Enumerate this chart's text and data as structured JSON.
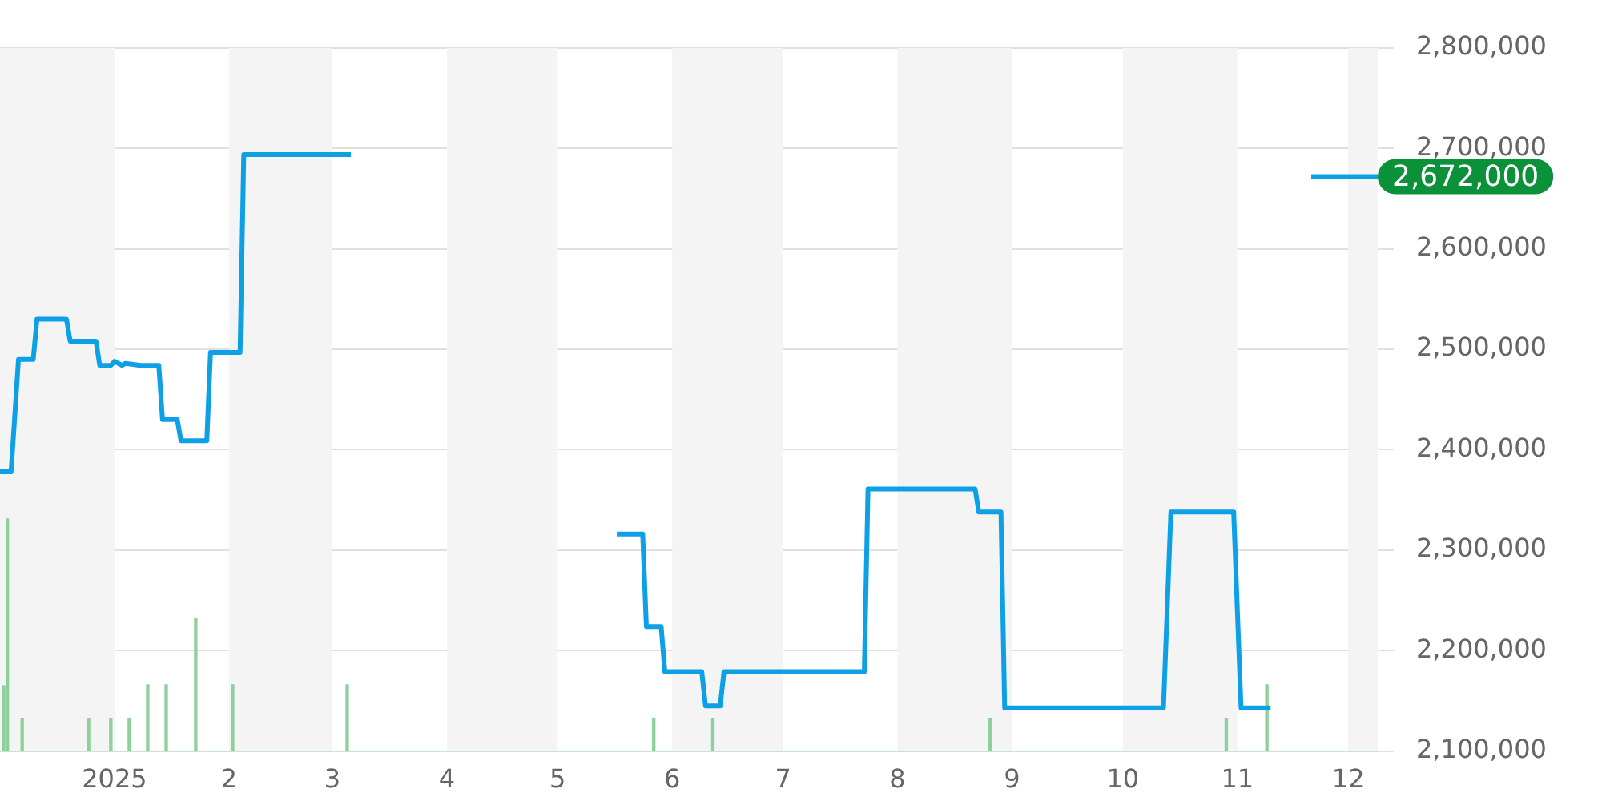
{
  "chart_data": {
    "type": "line",
    "series": [
      {
        "color": "#0ea0e6",
        "x": [
          "2024-12-01",
          "2024-12-04",
          "2024-12-06",
          "2024-12-10",
          "2024-12-11",
          "2024-12-19",
          "2024-12-20",
          "2024-12-27",
          "2024-12-28",
          "2024-12-31",
          "2025-01-01",
          "2025-01-03",
          "2025-01-04",
          "2025-01-08",
          "2025-01-13",
          "2025-01-14",
          "2025-01-18",
          "2025-01-19",
          "2025-01-26",
          "2025-01-27",
          "2025-02-04",
          "2025-02-05",
          "2025-03-06",
          "2025-04-01",
          "2025-05-17",
          "2025-05-24",
          "2025-05-25",
          "2025-05-29",
          "2025-05-30",
          "2025-06-09",
          "2025-06-10",
          "2025-06-14",
          "2025-06-15",
          "2025-07-23",
          "2025-07-24",
          "2025-08-22",
          "2025-08-23",
          "2025-08-29",
          "2025-08-30",
          "2025-10-12",
          "2025-10-14",
          "2025-10-31",
          "2025-11-02",
          "2025-11-10",
          "2025-11-15",
          "2025-11-21",
          "2025-12-09"
        ],
        "values": [
          2378000,
          2378000,
          2490000,
          2490000,
          2530000,
          2530000,
          2508000,
          2508000,
          2484000,
          2484000,
          2488000,
          2484000,
          2486000,
          2484000,
          2484000,
          2430000,
          2430000,
          2409000,
          2409000,
          2497000,
          2497000,
          2694000,
          2694000,
          null,
          2316000,
          2316000,
          2224000,
          2224000,
          2179000,
          2179000,
          2145000,
          2145000,
          2179000,
          2179000,
          2361000,
          2361000,
          2338000,
          2338000,
          2143000,
          2143000,
          2338000,
          2338000,
          2143000,
          2143000,
          null,
          2672000,
          2672000
        ]
      },
      {
        "type": "bar",
        "color": "#8ed09c",
        "x": [
          "2024-12-02",
          "2024-12-03",
          "2024-12-07",
          "2024-12-25",
          "2024-12-31",
          "2025-01-05",
          "2025-01-10",
          "2025-01-15",
          "2025-01-23",
          "2025-02-02",
          "2025-03-05",
          "2025-05-27",
          "2025-06-12",
          "2025-08-26",
          "2025-10-29",
          "2025-11-09"
        ],
        "values": [
          2165000,
          2331000,
          2132000,
          2132000,
          2132000,
          2132000,
          2166000,
          2166000,
          2232000,
          2166000,
          2166000,
          2132000,
          2132000,
          2132000,
          2132000,
          2166000
        ]
      }
    ],
    "xlim": [
      "2024-12-01",
      "2025-12-09"
    ],
    "xticks": [
      {
        "value": "2025-01-01",
        "label": "2025"
      },
      {
        "value": "2025-02-01",
        "label": "2"
      },
      {
        "value": "2025-03-01",
        "label": "3"
      },
      {
        "value": "2025-04-01",
        "label": "4"
      },
      {
        "value": "2025-05-01",
        "label": "5"
      },
      {
        "value": "2025-06-01",
        "label": "6"
      },
      {
        "value": "2025-07-01",
        "label": "7"
      },
      {
        "value": "2025-08-01",
        "label": "8"
      },
      {
        "value": "2025-09-01",
        "label": "9"
      },
      {
        "value": "2025-10-01",
        "label": "10"
      },
      {
        "value": "2025-11-01",
        "label": "11"
      },
      {
        "value": "2025-12-01",
        "label": "12"
      }
    ],
    "ylim": [
      2100000,
      2800000
    ],
    "yticks": [
      {
        "value": 2100000,
        "label": "2,100,000"
      },
      {
        "value": 2200000,
        "label": "2,200,000"
      },
      {
        "value": 2300000,
        "label": "2,300,000"
      },
      {
        "value": 2400000,
        "label": "2,400,000"
      },
      {
        "value": 2500000,
        "label": "2,500,000"
      },
      {
        "value": 2600000,
        "label": "2,600,000"
      },
      {
        "value": 2700000,
        "label": "2,700,000"
      },
      {
        "value": 2800000,
        "label": "2,800,000"
      }
    ],
    "grid": "y",
    "legend": false,
    "bands": [
      {
        "axis": "x",
        "from": "2024-12-01",
        "to": "2025-01-01",
        "color": "#f4f4f4"
      },
      {
        "axis": "x",
        "from": "2025-02-01",
        "to": "2025-03-01",
        "color": "#f4f4f4"
      },
      {
        "axis": "x",
        "from": "2025-04-01",
        "to": "2025-05-01",
        "color": "#f4f4f4"
      },
      {
        "axis": "x",
        "from": "2025-06-01",
        "to": "2025-07-01",
        "color": "#f4f4f4"
      },
      {
        "axis": "x",
        "from": "2025-08-01",
        "to": "2025-09-01",
        "color": "#f4f4f4"
      },
      {
        "axis": "x",
        "from": "2025-10-01",
        "to": "2025-11-01",
        "color": "#f4f4f4"
      },
      {
        "axis": "x",
        "from": "2025-12-01",
        "to": "2025-12-09",
        "color": "#f4f4f4"
      }
    ],
    "annotations": [
      {
        "text": "2,672,000",
        "x": "2025-12-09",
        "y": 2672000
      }
    ]
  }
}
